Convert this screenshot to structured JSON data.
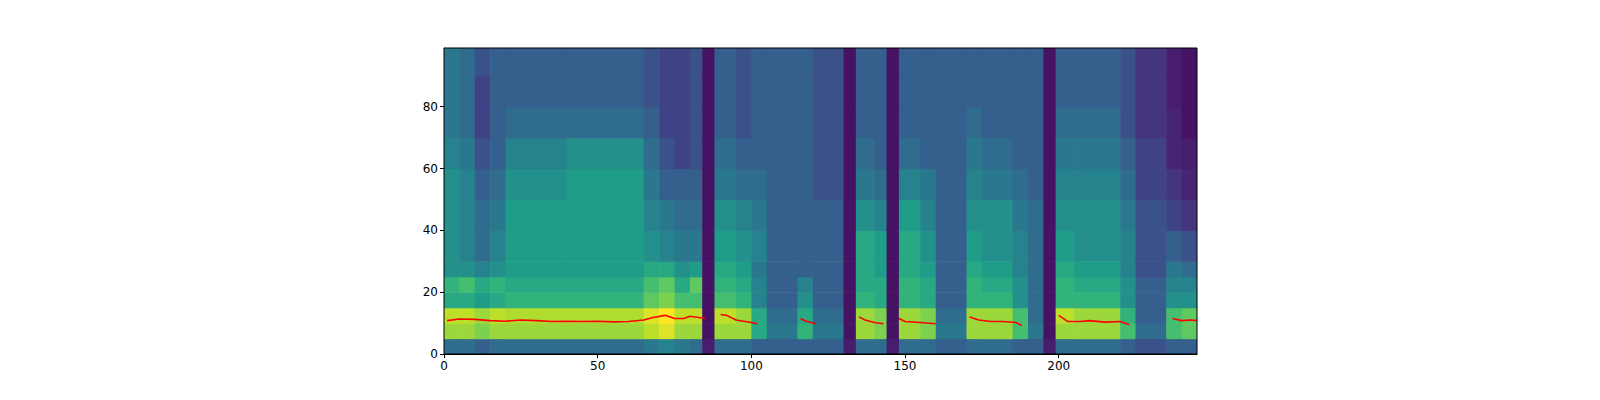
{
  "chart_data": {
    "type": "heatmap",
    "xlim": [
      0,
      245
    ],
    "ylim": [
      0,
      99
    ],
    "xticks": [
      0,
      50,
      100,
      150,
      200
    ],
    "yticks": [
      0,
      20,
      40,
      60,
      80
    ],
    "grid": false,
    "x_bins": [
      0,
      5,
      10,
      15,
      20,
      40,
      65,
      70,
      75,
      80,
      84,
      88,
      95,
      100,
      105,
      115,
      120,
      130,
      134,
      140,
      144,
      148,
      155,
      160,
      170,
      175,
      185,
      190,
      195,
      199,
      205,
      220,
      225,
      235,
      240,
      245
    ],
    "y_bins": [
      0,
      5,
      10,
      15,
      20,
      25,
      30,
      40,
      50,
      60,
      70,
      80,
      90,
      99
    ],
    "color_range": [
      0,
      1
    ],
    "cells": [
      [
        0.35,
        0.85,
        0.9,
        0.6,
        0.65,
        0.5,
        0.5,
        0.5,
        0.5,
        0.45,
        0.4,
        0.4,
        0.4
      ],
      [
        0.35,
        0.85,
        0.9,
        0.6,
        0.7,
        0.5,
        0.45,
        0.45,
        0.45,
        0.4,
        0.35,
        0.35,
        0.35
      ],
      [
        0.3,
        0.8,
        0.85,
        0.55,
        0.6,
        0.45,
        0.35,
        0.35,
        0.3,
        0.25,
        0.2,
        0.2,
        0.25
      ],
      [
        0.35,
        0.85,
        0.9,
        0.6,
        0.65,
        0.5,
        0.45,
        0.4,
        0.35,
        0.3,
        0.3,
        0.3,
        0.3
      ],
      [
        0.35,
        0.85,
        0.88,
        0.65,
        0.6,
        0.55,
        0.55,
        0.55,
        0.5,
        0.45,
        0.35,
        0.3,
        0.3
      ],
      [
        0.35,
        0.85,
        0.88,
        0.65,
        0.6,
        0.55,
        0.55,
        0.55,
        0.55,
        0.5,
        0.35,
        0.3,
        0.3
      ],
      [
        0.4,
        0.9,
        0.95,
        0.75,
        0.7,
        0.6,
        0.5,
        0.45,
        0.4,
        0.35,
        0.3,
        0.25,
        0.25
      ],
      [
        0.45,
        0.95,
        1.0,
        0.8,
        0.75,
        0.6,
        0.45,
        0.4,
        0.3,
        0.25,
        0.2,
        0.2,
        0.2
      ],
      [
        0.4,
        0.85,
        0.9,
        0.7,
        0.6,
        0.5,
        0.4,
        0.35,
        0.3,
        0.2,
        0.2,
        0.2,
        0.2
      ],
      [
        0.35,
        0.85,
        0.9,
        0.7,
        0.75,
        0.55,
        0.4,
        0.35,
        0.3,
        0.25,
        0.25,
        0.25,
        0.25
      ],
      [
        0.08,
        0.05,
        0.05,
        0.05,
        0.05,
        0.05,
        0.05,
        0.05,
        0.05,
        0.05,
        0.05,
        0.05,
        0.05
      ],
      [
        0.35,
        0.85,
        0.9,
        0.7,
        0.65,
        0.6,
        0.55,
        0.5,
        0.4,
        0.35,
        0.3,
        0.3,
        0.3
      ],
      [
        0.35,
        0.85,
        0.85,
        0.65,
        0.6,
        0.55,
        0.5,
        0.45,
        0.35,
        0.3,
        0.25,
        0.25,
        0.25
      ],
      [
        0.3,
        0.6,
        0.6,
        0.45,
        0.45,
        0.4,
        0.45,
        0.4,
        0.35,
        0.3,
        0.3,
        0.3,
        0.3
      ],
      [
        0.3,
        0.4,
        0.35,
        0.3,
        0.3,
        0.3,
        0.3,
        0.3,
        0.3,
        0.3,
        0.3,
        0.3,
        0.3
      ],
      [
        0.3,
        0.65,
        0.6,
        0.5,
        0.45,
        0.3,
        0.3,
        0.3,
        0.3,
        0.3,
        0.3,
        0.3,
        0.3
      ],
      [
        0.3,
        0.4,
        0.35,
        0.3,
        0.3,
        0.3,
        0.3,
        0.3,
        0.25,
        0.25,
        0.25,
        0.25,
        0.25
      ],
      [
        0.08,
        0.05,
        0.05,
        0.05,
        0.05,
        0.05,
        0.05,
        0.05,
        0.05,
        0.05,
        0.05,
        0.05,
        0.05
      ],
      [
        0.35,
        0.85,
        0.85,
        0.65,
        0.6,
        0.6,
        0.6,
        0.5,
        0.4,
        0.35,
        0.3,
        0.3,
        0.3
      ],
      [
        0.35,
        0.8,
        0.8,
        0.6,
        0.6,
        0.55,
        0.55,
        0.45,
        0.35,
        0.3,
        0.3,
        0.3,
        0.3
      ],
      [
        0.08,
        0.05,
        0.05,
        0.05,
        0.05,
        0.05,
        0.05,
        0.05,
        0.05,
        0.05,
        0.05,
        0.05,
        0.05
      ],
      [
        0.35,
        0.85,
        0.85,
        0.65,
        0.65,
        0.6,
        0.6,
        0.55,
        0.45,
        0.35,
        0.3,
        0.3,
        0.3
      ],
      [
        0.35,
        0.8,
        0.8,
        0.6,
        0.6,
        0.55,
        0.5,
        0.45,
        0.4,
        0.3,
        0.3,
        0.3,
        0.3
      ],
      [
        0.3,
        0.4,
        0.35,
        0.3,
        0.3,
        0.3,
        0.3,
        0.3,
        0.3,
        0.3,
        0.3,
        0.3,
        0.3
      ],
      [
        0.35,
        0.85,
        0.85,
        0.65,
        0.65,
        0.6,
        0.55,
        0.5,
        0.45,
        0.4,
        0.35,
        0.3,
        0.3
      ],
      [
        0.35,
        0.85,
        0.85,
        0.65,
        0.6,
        0.55,
        0.5,
        0.5,
        0.4,
        0.35,
        0.3,
        0.3,
        0.3
      ],
      [
        0.3,
        0.7,
        0.7,
        0.5,
        0.5,
        0.45,
        0.45,
        0.4,
        0.35,
        0.3,
        0.3,
        0.3,
        0.3
      ],
      [
        0.3,
        0.4,
        0.35,
        0.35,
        0.35,
        0.35,
        0.35,
        0.35,
        0.3,
        0.3,
        0.3,
        0.3,
        0.3
      ],
      [
        0.08,
        0.05,
        0.05,
        0.05,
        0.05,
        0.05,
        0.05,
        0.05,
        0.05,
        0.05,
        0.05,
        0.05,
        0.05
      ],
      [
        0.35,
        0.85,
        0.9,
        0.65,
        0.65,
        0.6,
        0.55,
        0.5,
        0.45,
        0.4,
        0.35,
        0.3,
        0.3
      ],
      [
        0.35,
        0.85,
        0.85,
        0.65,
        0.6,
        0.55,
        0.5,
        0.5,
        0.45,
        0.4,
        0.35,
        0.3,
        0.3
      ],
      [
        0.3,
        0.7,
        0.65,
        0.5,
        0.5,
        0.45,
        0.45,
        0.4,
        0.35,
        0.3,
        0.25,
        0.25,
        0.25
      ],
      [
        0.25,
        0.35,
        0.3,
        0.3,
        0.3,
        0.25,
        0.25,
        0.25,
        0.2,
        0.2,
        0.15,
        0.15,
        0.15
      ],
      [
        0.3,
        0.7,
        0.7,
        0.5,
        0.45,
        0.4,
        0.3,
        0.2,
        0.15,
        0.1,
        0.1,
        0.08,
        0.08
      ],
      [
        0.3,
        0.75,
        0.75,
        0.5,
        0.45,
        0.35,
        0.25,
        0.15,
        0.1,
        0.08,
        0.05,
        0.05,
        0.05
      ]
    ],
    "series": [
      {
        "type": "line",
        "color": "#ff0000",
        "x": [
          1,
          5,
          10,
          15,
          20,
          25,
          30,
          35,
          40,
          45,
          50,
          55,
          60,
          65,
          68,
          72,
          75,
          78,
          80,
          83,
          85,
          87,
          90,
          92,
          95,
          100,
          102,
          110,
          116,
          118,
          121,
          130,
          135,
          137,
          140,
          143,
          146,
          148,
          150,
          155,
          160,
          165,
          171,
          174,
          178,
          182,
          186,
          188,
          195,
          200,
          203,
          207,
          210,
          215,
          220,
          223,
          230,
          237,
          240,
          243,
          245
        ],
        "values": [
          10.8,
          11.3,
          11.2,
          10.8,
          10.6,
          11,
          10.8,
          10.5,
          10.6,
          10.5,
          10.6,
          10.4,
          10.5,
          11,
          11.8,
          12.5,
          11.5,
          11.5,
          12.2,
          11.8,
          11.5,
          null,
          12.8,
          12.5,
          11,
          10.2,
          9.8,
          null,
          11.5,
          10.5,
          9.8,
          null,
          12,
          11,
          10.2,
          9.8,
          null,
          11.5,
          10.5,
          10.2,
          9.8,
          null,
          12,
          11,
          10.5,
          10.5,
          10.2,
          9.2,
          null,
          12.5,
          10.5,
          10.5,
          10.8,
          10.3,
          10.5,
          9.5,
          null,
          11.5,
          10.8,
          11,
          10.8
        ]
      }
    ]
  }
}
